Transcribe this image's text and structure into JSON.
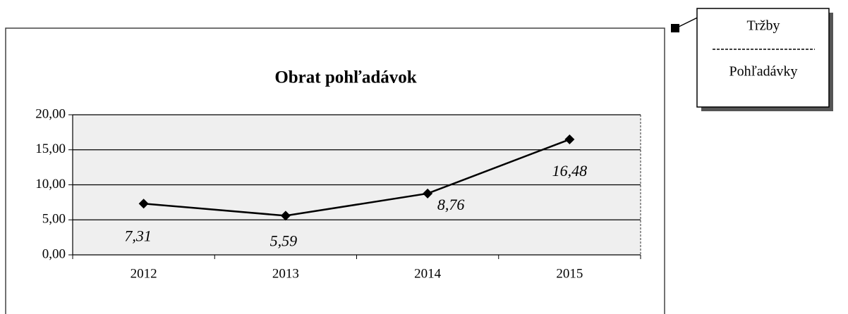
{
  "chart_data": {
    "type": "line",
    "title": "Obrat pohľadávok",
    "categories": [
      "2012",
      "2013",
      "2014",
      "2015"
    ],
    "values": [
      7.31,
      5.59,
      8.76,
      16.48
    ],
    "value_labels": [
      "7,31",
      "5,59",
      "8,76",
      "16,48"
    ],
    "color": "#000000",
    "ylim": [
      0,
      20
    ],
    "yticks": [
      {
        "value": 0,
        "label": "0,00"
      },
      {
        "value": 5,
        "label": "5,00"
      },
      {
        "value": 10,
        "label": "10,00"
      },
      {
        "value": 15,
        "label": "15,00"
      },
      {
        "value": 20,
        "label": "20,00"
      }
    ],
    "grid": true
  },
  "annotation": {
    "numerator": "Tržby",
    "denominator": "Pohľadávky"
  }
}
